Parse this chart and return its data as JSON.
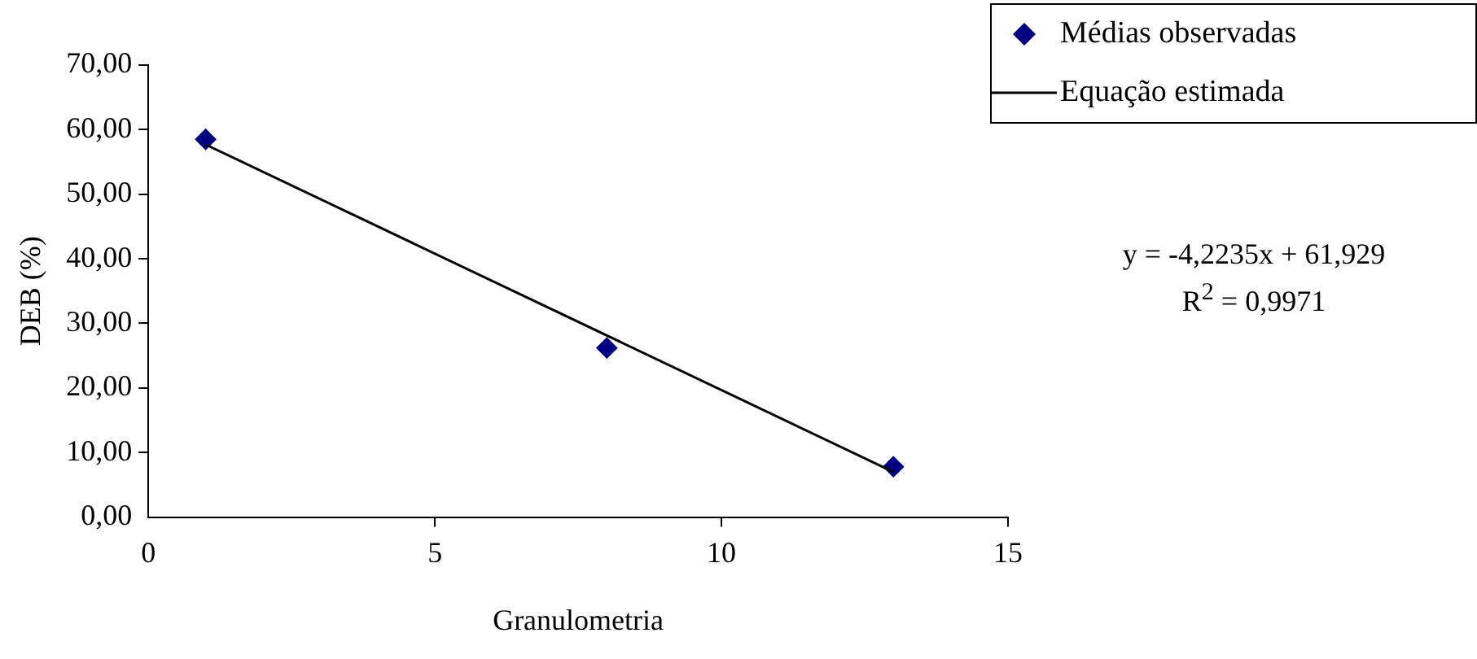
{
  "chart_data": {
    "type": "scatter",
    "xlabel": "Granulometria",
    "ylabel": "DEB (%)",
    "xlim": [
      0,
      15
    ],
    "xticks": [
      0,
      5,
      10,
      15
    ],
    "ylim": [
      0,
      70
    ],
    "yticks": [
      {
        "value": 0,
        "label": "0,00"
      },
      {
        "value": 10,
        "label": "10,00"
      },
      {
        "value": 20,
        "label": "20,00"
      },
      {
        "value": 30,
        "label": "30,00"
      },
      {
        "value": 40,
        "label": "40,00"
      },
      {
        "value": 50,
        "label": "50,00"
      },
      {
        "value": 60,
        "label": "60,00"
      },
      {
        "value": 70,
        "label": "70,00"
      }
    ],
    "series": [
      {
        "name": "Médias observadas",
        "type": "scatter",
        "color": "#000080",
        "marker": "diamond",
        "x": [
          1,
          8,
          13
        ],
        "values": [
          58.5,
          26.2,
          7.8
        ]
      },
      {
        "name": "Equação estimada",
        "type": "line",
        "color": "#000000",
        "marker": "none",
        "line_style": "solid",
        "x": [
          1,
          13
        ],
        "values": [
          57.7,
          7.0
        ]
      }
    ],
    "annotations": [
      "y = -4,2235x + 61,929",
      "R$^{2}$ = 0,9971"
    ],
    "grid": false,
    "legend": "top right"
  }
}
